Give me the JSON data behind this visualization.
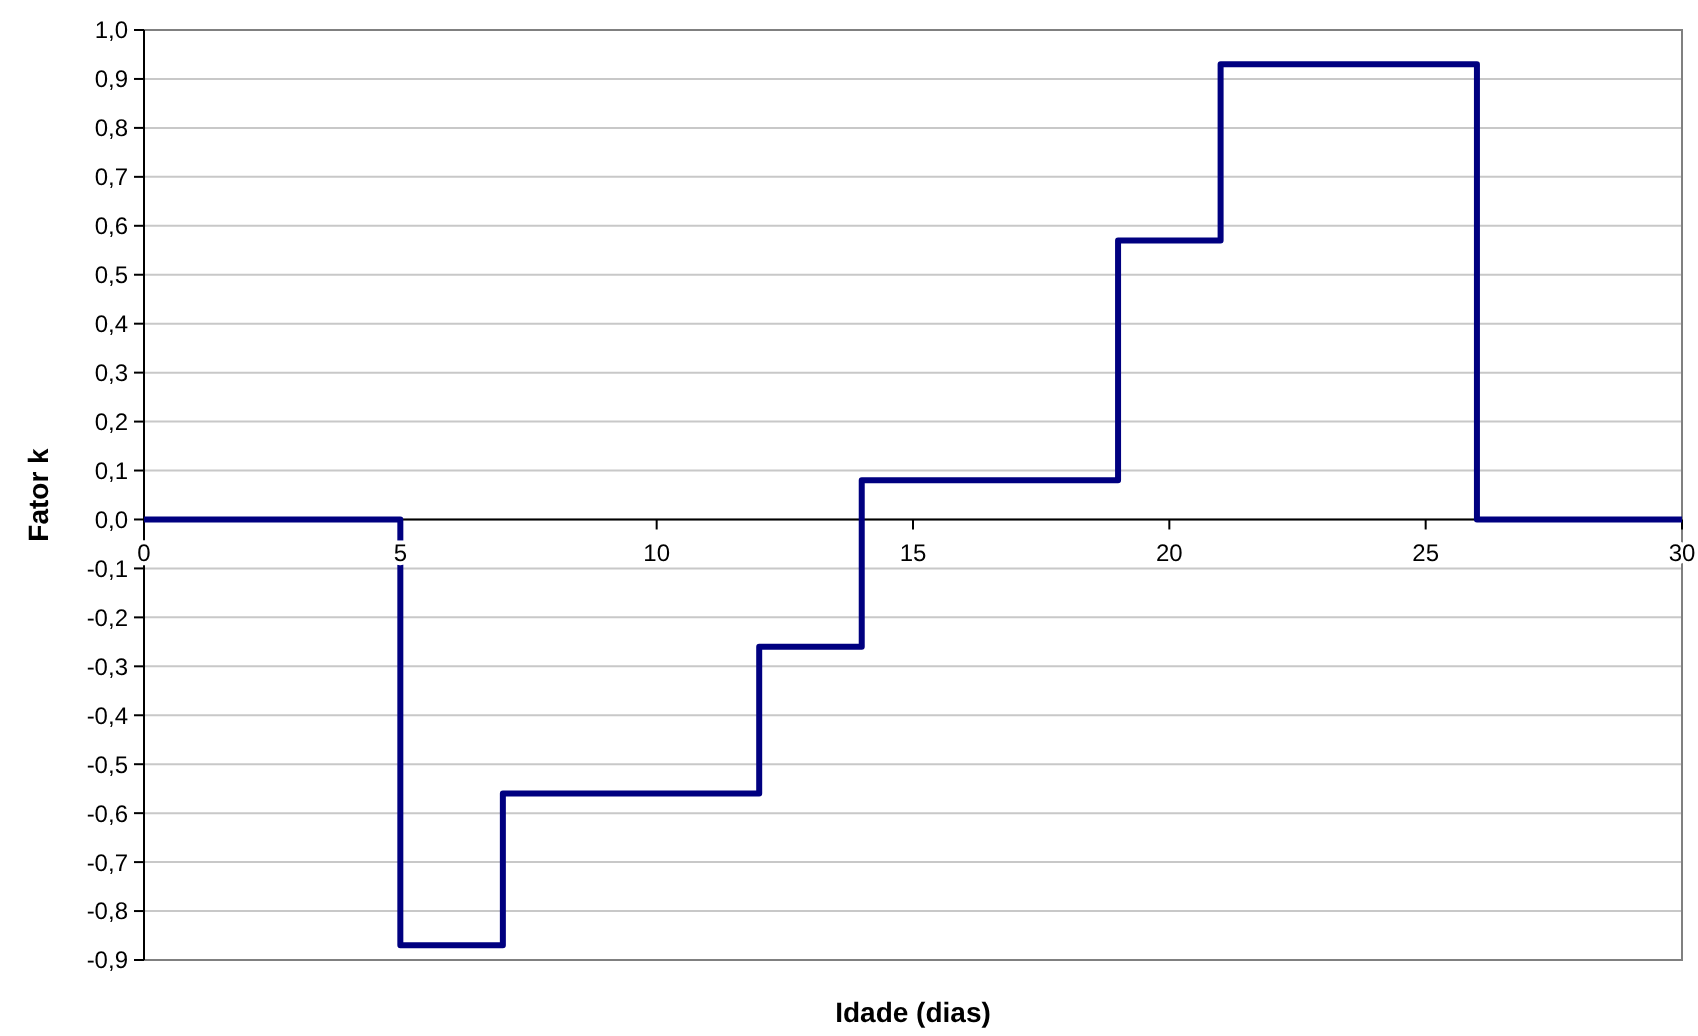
{
  "chart_data": {
    "type": "step",
    "xlabel": "Idade (dias)",
    "ylabel": "Fator k",
    "x": [
      0,
      5,
      7,
      12,
      14,
      19,
      21,
      26,
      30
    ],
    "series": [
      {
        "color": "#000080",
        "values": [
          0,
          -0.87,
          -0.56,
          -0.26,
          0.08,
          0.57,
          0.93,
          0,
          0
        ]
      }
    ],
    "xlim": [
      0,
      30
    ],
    "xticks": [
      0,
      5,
      10,
      15,
      20,
      25,
      30
    ],
    "ylim": [
      -0.9,
      1.0
    ],
    "yticks": [
      {
        "value": -0.9,
        "label": "-0,9"
      },
      {
        "value": -0.8,
        "label": "-0,8"
      },
      {
        "value": -0.7,
        "label": "-0,7"
      },
      {
        "value": -0.6,
        "label": "-0,6"
      },
      {
        "value": -0.5,
        "label": "-0,5"
      },
      {
        "value": -0.4,
        "label": "-0,4"
      },
      {
        "value": -0.3,
        "label": "-0,3"
      },
      {
        "value": -0.2,
        "label": "-0,2"
      },
      {
        "value": -0.1,
        "label": "-0,1"
      },
      {
        "value": 0,
        "label": "0,0"
      },
      {
        "value": 0.1,
        "label": "0,1"
      },
      {
        "value": 0.2,
        "label": "0,2"
      },
      {
        "value": 0.3,
        "label": "0,3"
      },
      {
        "value": 0.4,
        "label": "0,4"
      },
      {
        "value": 0.5,
        "label": "0,5"
      },
      {
        "value": 0.6,
        "label": "0,6"
      },
      {
        "value": 0.7,
        "label": "0,7"
      },
      {
        "value": 0.8,
        "label": "0,8"
      },
      {
        "value": 0.9,
        "label": "0,9"
      },
      {
        "value": 1.0,
        "label": "1,0"
      }
    ],
    "grid": "y",
    "marker": "none",
    "line_style": "solid"
  }
}
